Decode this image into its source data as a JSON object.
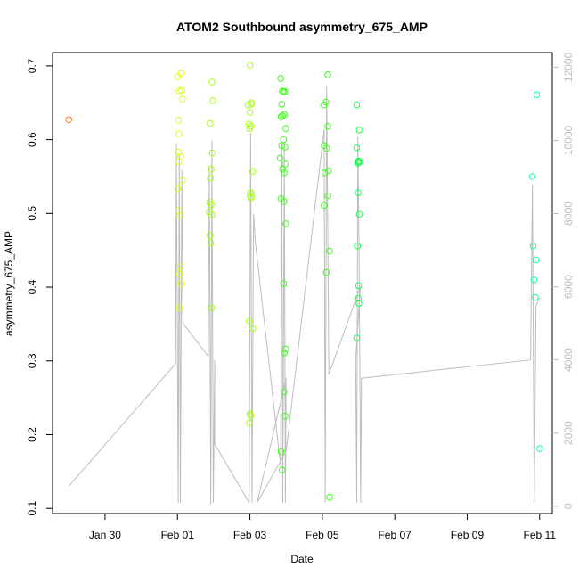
{
  "chart_data": {
    "type": "scatter",
    "title": "ATOM2 Southbound asymmetry_675_AMP",
    "xlabel": "Date",
    "ylabel": "asymmetry_675_AMP",
    "x_tick_labels": [
      "Jan 30",
      "Feb 01",
      "Feb 03",
      "Feb 05",
      "Feb 07",
      "Feb 09",
      "Feb 11"
    ],
    "x_ticks_day": [
      0,
      2,
      4,
      6,
      8,
      10,
      12
    ],
    "x_range_day": [
      -1.45,
      12.35
    ],
    "y_ticks": [
      0.1,
      0.2,
      0.3,
      0.4,
      0.5,
      0.6,
      0.7
    ],
    "ylim": [
      0.093,
      0.718
    ],
    "y2_ticks": [
      0,
      2000,
      4000,
      6000,
      8000,
      10000,
      12000
    ],
    "y2lim": [
      -200,
      12400
    ],
    "grid": false,
    "colors": {
      "c_orange": "#ff7f26",
      "c_yellow": "#ddff1a",
      "c_ygreen": "#a6ff1a",
      "c_green": "#3dff1a",
      "c_green2": "#1aff4d",
      "c_mint": "#1aff9c",
      "c_line": "#bdbdbd"
    },
    "series": [
      {
        "color": "c_orange",
        "points": [
          [
            -1.0,
            0.627
          ]
        ]
      },
      {
        "color": "c_yellow",
        "points": [
          [
            2.0,
            0.685
          ],
          [
            2.1,
            0.69
          ],
          [
            2.05,
            0.666
          ],
          [
            2.12,
            0.667
          ],
          [
            2.14,
            0.655
          ],
          [
            2.03,
            0.626
          ],
          [
            2.04,
            0.608
          ],
          [
            2.02,
            0.583
          ],
          [
            2.09,
            0.577
          ],
          [
            2.04,
            0.57
          ],
          [
            2.14,
            0.545
          ],
          [
            2.01,
            0.534
          ],
          [
            2.03,
            0.504
          ],
          [
            2.07,
            0.497
          ],
          [
            2.08,
            0.428
          ],
          [
            2.06,
            0.418
          ],
          [
            2.1,
            0.405
          ],
          [
            2.05,
            0.372
          ]
        ]
      },
      {
        "color": "c_ygreen",
        "points": [
          [
            2.95,
            0.678
          ],
          [
            2.98,
            0.653
          ],
          [
            2.9,
            0.622
          ],
          [
            2.96,
            0.582
          ],
          [
            2.93,
            0.56
          ],
          [
            2.91,
            0.548
          ],
          [
            2.89,
            0.515
          ],
          [
            2.93,
            0.512
          ],
          [
            2.88,
            0.502
          ],
          [
            2.95,
            0.498
          ],
          [
            2.9,
            0.47
          ],
          [
            2.92,
            0.46
          ],
          [
            2.94,
            0.372
          ]
        ]
      },
      {
        "color": "c_ygreen",
        "points": [
          [
            4.0,
            0.701
          ],
          [
            4.05,
            0.65
          ],
          [
            4.03,
            0.648
          ],
          [
            3.95,
            0.647
          ],
          [
            4.0,
            0.637
          ],
          [
            3.98,
            0.621
          ],
          [
            4.02,
            0.618
          ],
          [
            3.99,
            0.615
          ],
          [
            4.07,
            0.557
          ],
          [
            4.0,
            0.528
          ],
          [
            4.05,
            0.527
          ],
          [
            4.01,
            0.523
          ],
          [
            4.03,
            0.521
          ],
          [
            3.98,
            0.354
          ],
          [
            4.08,
            0.344
          ],
          [
            4.0,
            0.228
          ],
          [
            4.02,
            0.226
          ],
          [
            3.99,
            0.216
          ]
        ]
      },
      {
        "color": "c_green",
        "points": [
          [
            4.85,
            0.683
          ],
          [
            4.9,
            0.666
          ],
          [
            4.93,
            0.665
          ],
          [
            4.97,
            0.665
          ],
          [
            4.88,
            0.648
          ],
          [
            4.95,
            0.634
          ],
          [
            4.9,
            0.632
          ],
          [
            4.86,
            0.631
          ],
          [
            4.99,
            0.615
          ],
          [
            4.93,
            0.6
          ],
          [
            4.88,
            0.592
          ],
          [
            4.97,
            0.59
          ],
          [
            4.84,
            0.575
          ],
          [
            4.98,
            0.567
          ],
          [
            4.9,
            0.56
          ],
          [
            4.95,
            0.555
          ],
          [
            4.86,
            0.52
          ],
          [
            4.94,
            0.516
          ],
          [
            4.99,
            0.486
          ],
          [
            4.93,
            0.405
          ],
          [
            4.99,
            0.316
          ],
          [
            4.95,
            0.311
          ],
          [
            4.94,
            0.258
          ],
          [
            4.97,
            0.225
          ],
          [
            4.86,
            0.177
          ],
          [
            4.89,
            0.152
          ]
        ]
      },
      {
        "color": "c_green",
        "points": [
          [
            6.15,
            0.688
          ],
          [
            6.1,
            0.651
          ],
          [
            6.05,
            0.647
          ],
          [
            6.15,
            0.618
          ],
          [
            6.05,
            0.592
          ],
          [
            6.12,
            0.588
          ],
          [
            6.07,
            0.555
          ],
          [
            6.17,
            0.558
          ],
          [
            6.15,
            0.524
          ],
          [
            6.05,
            0.511
          ],
          [
            6.2,
            0.449
          ],
          [
            6.11,
            0.42
          ],
          [
            6.2,
            0.115
          ]
        ]
      },
      {
        "color": "c_green2",
        "points": [
          [
            6.95,
            0.647
          ],
          [
            7.02,
            0.613
          ],
          [
            6.95,
            0.589
          ],
          [
            7.0,
            0.571
          ],
          [
            6.99,
            0.57
          ],
          [
            7.03,
            0.57
          ],
          [
            6.98,
            0.568
          ],
          [
            6.99,
            0.528
          ],
          [
            7.02,
            0.499
          ],
          [
            6.97,
            0.456
          ],
          [
            7.0,
            0.402
          ],
          [
            6.99,
            0.385
          ],
          [
            7.01,
            0.378
          ],
          [
            6.95,
            0.331
          ]
        ]
      },
      {
        "color": "c_mint",
        "points": [
          [
            11.92,
            0.661
          ],
          [
            11.8,
            0.55
          ],
          [
            11.82,
            0.456
          ],
          [
            11.9,
            0.437
          ],
          [
            11.84,
            0.41
          ],
          [
            11.88,
            0.386
          ],
          [
            12.0,
            0.181
          ]
        ]
      }
    ],
    "line": [
      [
        -1.0,
        550
      ],
      [
        1.95,
        3900
      ],
      [
        1.97,
        9900
      ],
      [
        2.02,
        100
      ],
      [
        2.05,
        9600
      ],
      [
        2.08,
        100
      ],
      [
        2.12,
        9200
      ],
      [
        2.15,
        5000
      ],
      [
        2.85,
        4100
      ],
      [
        2.88,
        9300
      ],
      [
        2.92,
        50
      ],
      [
        2.95,
        10000
      ],
      [
        2.99,
        100
      ],
      [
        3.03,
        4000
      ],
      [
        3.03,
        1700
      ],
      [
        3.98,
        100
      ],
      [
        4.02,
        10200
      ],
      [
        4.06,
        100
      ],
      [
        4.1,
        8000
      ],
      [
        4.15,
        7200
      ],
      [
        4.85,
        1100
      ],
      [
        4.88,
        9900
      ],
      [
        4.91,
        100
      ],
      [
        4.95,
        9800
      ],
      [
        4.98,
        100
      ],
      [
        5.0,
        3500
      ],
      [
        4.2,
        100
      ],
      [
        5.0,
        1500
      ],
      [
        6.05,
        10300
      ],
      [
        6.08,
        100
      ],
      [
        6.12,
        11500
      ],
      [
        6.18,
        3600
      ],
      [
        7.05,
        6000
      ],
      [
        6.92,
        4000
      ],
      [
        6.95,
        100
      ],
      [
        6.98,
        10100
      ],
      [
        7.02,
        6400
      ],
      [
        7.06,
        100
      ],
      [
        7.08,
        3500
      ],
      [
        11.75,
        4000
      ],
      [
        11.8,
        8800
      ],
      [
        11.85,
        100
      ],
      [
        11.9,
        5500
      ],
      [
        12.0,
        5700
      ]
    ]
  }
}
